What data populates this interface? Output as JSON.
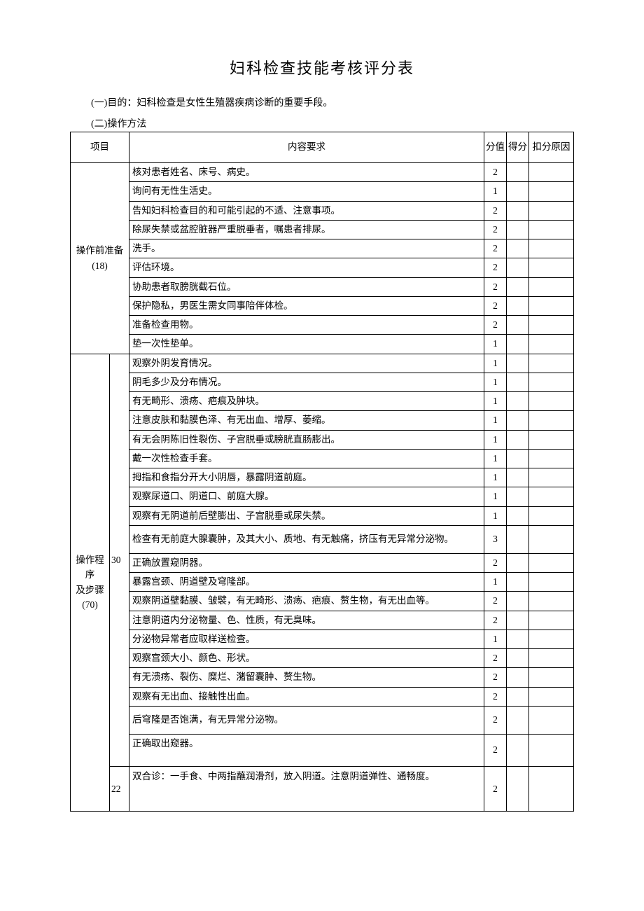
{
  "title": "妇科检查技能考核评分表",
  "purpose": "(一)目的：妇科检查是女性生殖器疾病诊断的重要手段。",
  "method_label": "(二)操作方法",
  "headers": {
    "item": "项目",
    "content": "内容要求",
    "score": "分值",
    "got": "得分",
    "reason": "扣分原因"
  },
  "sections": [
    {
      "item_label": "操作前准备\n(18)",
      "subgroups": [
        {
          "sub_label": "",
          "rows": [
            {
              "content": "核对患者姓名、床号、病史。",
              "score": "2"
            },
            {
              "content": "询问有无性生活史。",
              "score": "1"
            },
            {
              "content": "告知妇科检查目的和可能引起的不适、注意事项。",
              "score": "2"
            },
            {
              "content": "除尿失禁或盆腔脏器严重脱垂者，嘱患者排尿。",
              "score": "2"
            },
            {
              "content": "洗手。",
              "score": "2"
            },
            {
              "content": "评估环境。",
              "score": "2"
            },
            {
              "content": "协助患者取膀胱截石位。",
              "score": "2"
            },
            {
              "content": "保护隐私，男医生需女同事陪伴体检。",
              "score": "2"
            },
            {
              "content": "准备检查用物。",
              "score": "2"
            },
            {
              "content": "垫一次性垫单。",
              "score": "1"
            }
          ]
        }
      ]
    },
    {
      "item_label": "操作程序\n及步骤\n(70)",
      "subgroups": [
        {
          "sub_label": "30",
          "rows": [
            {
              "content": "观察外阴发育情况。",
              "score": "1"
            },
            {
              "content": "阴毛多少及分布情况。",
              "score": "1"
            },
            {
              "content": "有无畸形、溃疡、疤痕及肿块。",
              "score": "1"
            },
            {
              "content": "注意皮肤和黏膜色泽、有无出血、增厚、萎缩。",
              "score": "1"
            },
            {
              "content": "有无会阴陈旧性裂伤、子宫脱垂或膀胱直肠膨出。",
              "score": "1"
            },
            {
              "content": "戴一次性检查手套。",
              "score": "1"
            },
            {
              "content": "拇指和食指分开大小阴唇，暴露阴道前庭。",
              "score": "1"
            },
            {
              "content": "观察尿道口、阴道口、前庭大腺。",
              "score": "1"
            },
            {
              "content": "观察有无阴道前后壁膨出、子宫脱垂或尿失禁。",
              "score": "1"
            },
            {
              "content": "检查有无前庭大腺囊肿，及其大小、质地、有无触痛，挤压有无异常分泌物。",
              "score": "3",
              "tall": true
            },
            {
              "content": "正确放置窥阴器。",
              "score": "2"
            },
            {
              "content": "暴露宫颈、阴道壁及穹隆部。",
              "score": "1"
            },
            {
              "content": "观察阴道壁黏膜、皱襞，有无畸形、溃疡、疤痕、赘生物，有无出血等。",
              "score": "2"
            },
            {
              "content": "注意阴道内分泌物量、色、性质，有无臭味。",
              "score": "2"
            },
            {
              "content": "分泌物异常者应取样送检查。",
              "score": "1"
            },
            {
              "content": "观察宫颈大小、颜色、形状。",
              "score": "2"
            },
            {
              "content": "有无溃疡、裂伤、糜烂、潴留囊肿、赘生物。",
              "score": "2"
            },
            {
              "content": "观察有无出血、接触性出血。",
              "score": "2"
            },
            {
              "content": "后穹隆是否饱满，有无异常分泌物。",
              "score": "2",
              "tall": true
            },
            {
              "content": "正确取出窥器。",
              "score": "2",
              "taller": true
            }
          ]
        },
        {
          "sub_label": "22",
          "rows": [
            {
              "content": "双合诊：一手食、中两指蘸润滑剂，放入阴道。注意阴道弹性、通畅度。",
              "score": "2",
              "xtall": true
            }
          ]
        }
      ]
    }
  ],
  "colors": {
    "background": "#ffffff",
    "text": "#000000",
    "border": "#000000"
  }
}
